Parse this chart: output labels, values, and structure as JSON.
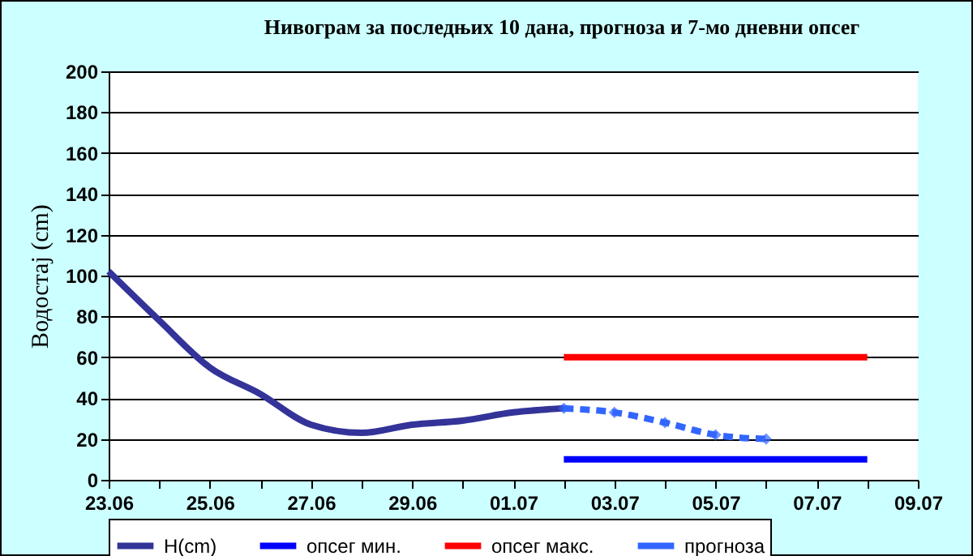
{
  "chart_data": {
    "type": "line",
    "title": "Нивограм за последњих 10 дана, прогноза и 7-мо дневни опсег",
    "ylabel": "Водостај (cm)",
    "xlim": [
      "--06-23",
      "--07-09"
    ],
    "xticks": [
      {
        "value": "--06-23",
        "label": "23.06"
      },
      {
        "value": "--06-24",
        "label": null
      },
      {
        "value": "--06-25",
        "label": "25.06"
      },
      {
        "value": "--06-26",
        "label": null
      },
      {
        "value": "--06-27",
        "label": "27.06"
      },
      {
        "value": "--06-28",
        "label": null
      },
      {
        "value": "--06-29",
        "label": "29.06"
      },
      {
        "value": "--06-30",
        "label": null
      },
      {
        "value": "--07-01",
        "label": "01.07"
      },
      {
        "value": "--07-02",
        "label": null
      },
      {
        "value": "--07-03",
        "label": "03.07"
      },
      {
        "value": "--07-04",
        "label": null
      },
      {
        "value": "--07-05",
        "label": "05.07"
      },
      {
        "value": "--07-06",
        "label": null
      },
      {
        "value": "--07-07",
        "label": "07.07"
      },
      {
        "value": "--07-08",
        "label": null
      },
      {
        "value": "--07-09",
        "label": "09.07"
      }
    ],
    "ylim": [
      0,
      200
    ],
    "yticks": [
      0,
      20,
      40,
      60,
      80,
      100,
      120,
      140,
      160,
      180,
      200
    ],
    "grid": "y",
    "legend": "bottom",
    "series": [
      {
        "name": "H(cm)",
        "color": "#333399",
        "x": [
          "--06-23",
          "--06-24",
          "--06-25",
          "--06-26",
          "--06-27",
          "--06-28",
          "--06-29",
          "--06-30",
          "--07-01",
          "--07-02"
        ],
        "values": [
          102,
          78,
          55,
          42,
          27,
          23,
          27,
          29,
          33,
          35
        ],
        "marker": "none",
        "line_style": "solid"
      },
      {
        "name": "опсег мин.",
        "color": "#0000ff",
        "x": [
          "--07-02",
          "--07-08"
        ],
        "values": [
          10,
          10
        ],
        "marker": "none",
        "line_style": "solid"
      },
      {
        "name": "опсег макс.",
        "color": "#ff0000",
        "x": [
          "--07-02",
          "--07-08"
        ],
        "values": [
          60,
          60
        ],
        "marker": "none",
        "line_style": "solid"
      },
      {
        "name": "прогноза",
        "color": "#3366ff",
        "x": [
          "--07-02",
          "--07-03",
          "--07-04",
          "--07-05",
          "--07-06"
        ],
        "values": [
          35,
          33,
          28,
          22,
          20
        ],
        "marker": "diamond",
        "line_style": "dashed"
      }
    ]
  }
}
